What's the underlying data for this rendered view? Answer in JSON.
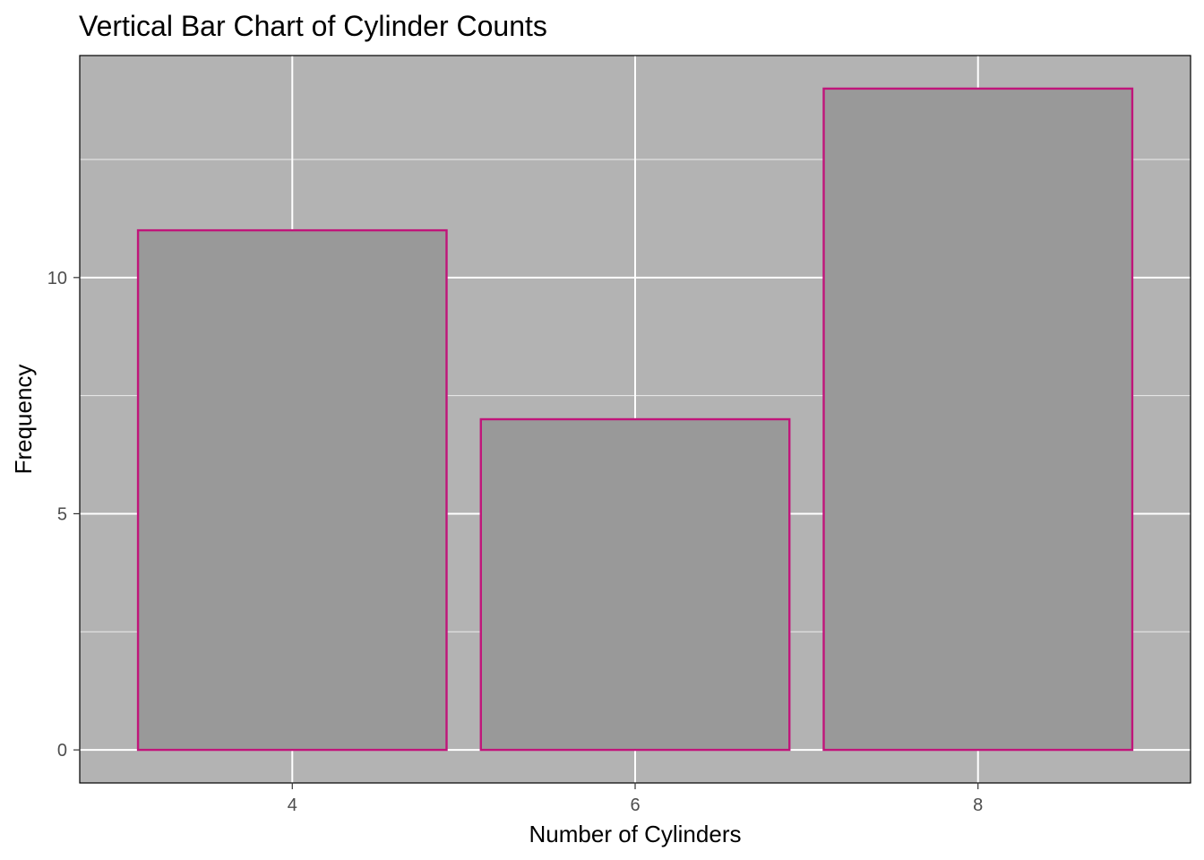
{
  "chart_data": {
    "type": "bar",
    "title": "Vertical Bar Chart of Cylinder Counts",
    "xlabel": "Number of Cylinders",
    "ylabel": "Frequency",
    "categories": [
      4,
      6,
      8
    ],
    "values": [
      11,
      7,
      14
    ],
    "x_ticks": [
      "4",
      "6",
      "8"
    ],
    "y_ticks": [
      0,
      5,
      10
    ],
    "xlim": [
      2.76,
      9.24
    ],
    "ylim": [
      -0.7,
      14.7
    ],
    "bar_width": 1.8,
    "grid": true,
    "legend": "none",
    "colors": {
      "panel_background": "#b3b3b3",
      "bar_fill": "#999999",
      "bar_outline": "#c0157a",
      "grid_major": "#ffffff",
      "grid_minor": "#ffffff",
      "panel_border": "#000000"
    }
  }
}
